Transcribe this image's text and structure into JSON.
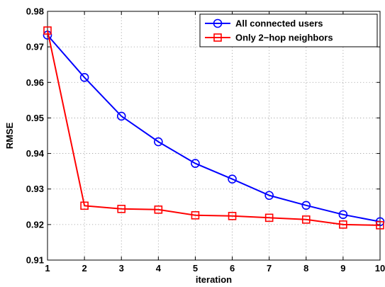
{
  "chart_data": {
    "type": "line",
    "title": "",
    "xlabel": "iteration",
    "ylabel": "RMSE",
    "x": [
      1,
      2,
      3,
      4,
      5,
      6,
      7,
      8,
      9,
      10
    ],
    "xlim": [
      1,
      10
    ],
    "ylim": [
      0.91,
      0.98
    ],
    "xticks": [
      "1",
      "2",
      "3",
      "4",
      "5",
      "6",
      "7",
      "8",
      "9",
      "10"
    ],
    "yticks": [
      "0.91",
      "0.92",
      "0.93",
      "0.94",
      "0.95",
      "0.96",
      "0.97",
      "0.98"
    ],
    "grid": true,
    "legend_position": "top-right",
    "series": [
      {
        "name": "All connected users",
        "color": "#0000ff",
        "marker": "circle",
        "values": [
          0.9733,
          0.9614,
          0.9505,
          0.9433,
          0.9372,
          0.9328,
          0.9282,
          0.9254,
          0.9228,
          0.9208
        ]
      },
      {
        "name": "Only 2−hop neighbors",
        "color": "#ff0000",
        "marker": "square",
        "values": [
          0.9746,
          0.9253,
          0.9244,
          0.9242,
          0.9226,
          0.9224,
          0.9219,
          0.9214,
          0.92,
          0.9198
        ]
      }
    ]
  }
}
